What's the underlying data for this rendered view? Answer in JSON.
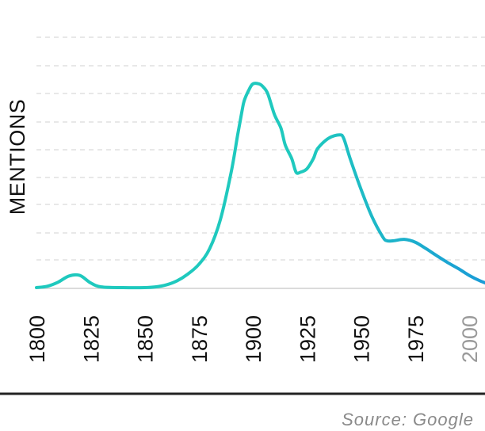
{
  "chart_data": {
    "type": "line",
    "title": "",
    "xlabel": "",
    "ylabel": "MENTIONS",
    "xlim": [
      1800,
      2010
    ],
    "ylim": [
      0,
      100
    ],
    "grid": true,
    "x_ticks": [
      "1800",
      "1825",
      "1850",
      "1875",
      "1900",
      "1925",
      "1950",
      "1975",
      "2000"
    ],
    "muted_ticks": [
      "2000"
    ],
    "series": [
      {
        "color_start": "#1fc9be",
        "color_end": "#1a9ad8",
        "x": [
          1800,
          1805,
          1810,
          1815,
          1820,
          1825,
          1830,
          1840,
          1850,
          1855,
          1860,
          1865,
          1870,
          1875,
          1880,
          1885,
          1890,
          1893,
          1895,
          1896,
          1898,
          1900,
          1903,
          1905,
          1907,
          1910,
          1913,
          1915,
          1918,
          1920,
          1922,
          1925,
          1928,
          1930,
          1935,
          1940,
          1942,
          1945,
          1950,
          1955,
          1960,
          1962,
          1965,
          1970,
          1975,
          1980,
          1985,
          1990,
          1995,
          2000,
          2005,
          2010
        ],
        "values": [
          0,
          0.4,
          1.6,
          3.4,
          3.6,
          1.4,
          0.2,
          0,
          0,
          0.2,
          0.8,
          2,
          4,
          6.8,
          11.4,
          20,
          34,
          45,
          52,
          55,
          58,
          60,
          60,
          59,
          57,
          51,
          47,
          42,
          38,
          34,
          34,
          35,
          38,
          41,
          44,
          45,
          44,
          38,
          29,
          21,
          15,
          13.8,
          13.8,
          14.2,
          13.4,
          11.5,
          9.4,
          7.4,
          5.6,
          3.6,
          2,
          0.8
        ]
      }
    ],
    "source": "Source: Google"
  },
  "colors": {
    "grid": "#d9d9d9",
    "rule": "#222222",
    "line_start": "#1fc9be",
    "line_end": "#1a9ad8"
  }
}
